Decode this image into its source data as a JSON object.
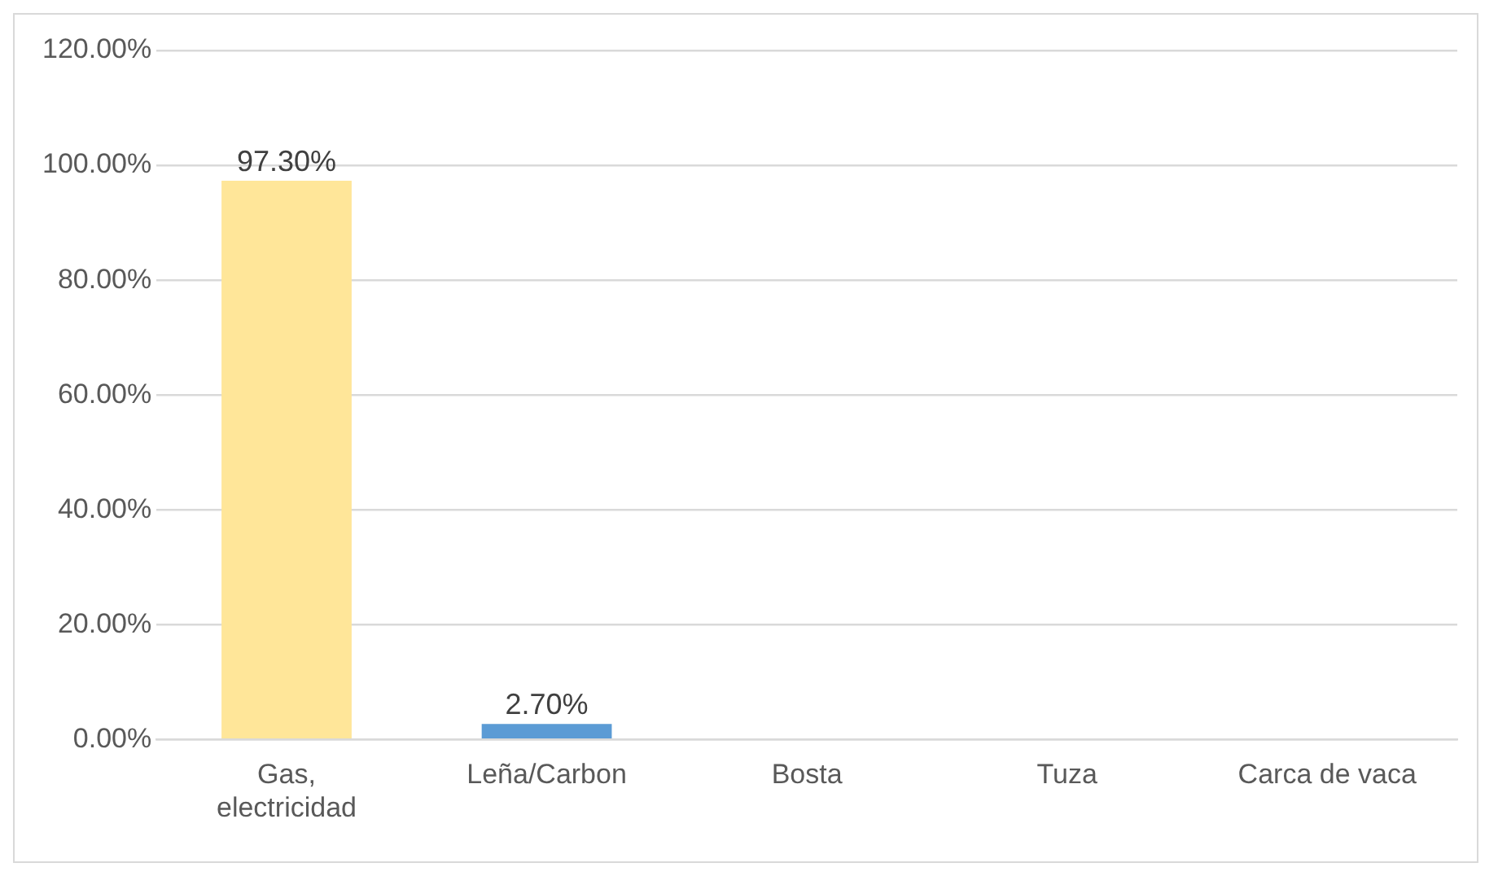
{
  "chart_data": {
    "type": "bar",
    "categories": [
      "Gas, electricidad",
      "Leña/Carbon",
      "Bosta",
      "Tuza",
      "Carca de vaca"
    ],
    "values": [
      97.3,
      2.7,
      0,
      0,
      0
    ],
    "colors": [
      "#ffe699",
      "#5b9bd5",
      "#5b9bd5",
      "#5b9bd5",
      "#5b9bd5"
    ],
    "value_labels": [
      "97.30%",
      "2.70%",
      null,
      null,
      null
    ],
    "ylim": [
      0,
      120
    ],
    "yticks": [
      {
        "value": 0,
        "label": "0.00%"
      },
      {
        "value": 20,
        "label": "20.00%"
      },
      {
        "value": 40,
        "label": "40.00%"
      },
      {
        "value": 60,
        "label": "60.00%"
      },
      {
        "value": 80,
        "label": "80.00%"
      },
      {
        "value": 100,
        "label": "100.00%"
      },
      {
        "value": 120,
        "label": "120.00%"
      }
    ],
    "grid": "y",
    "legend": false
  }
}
